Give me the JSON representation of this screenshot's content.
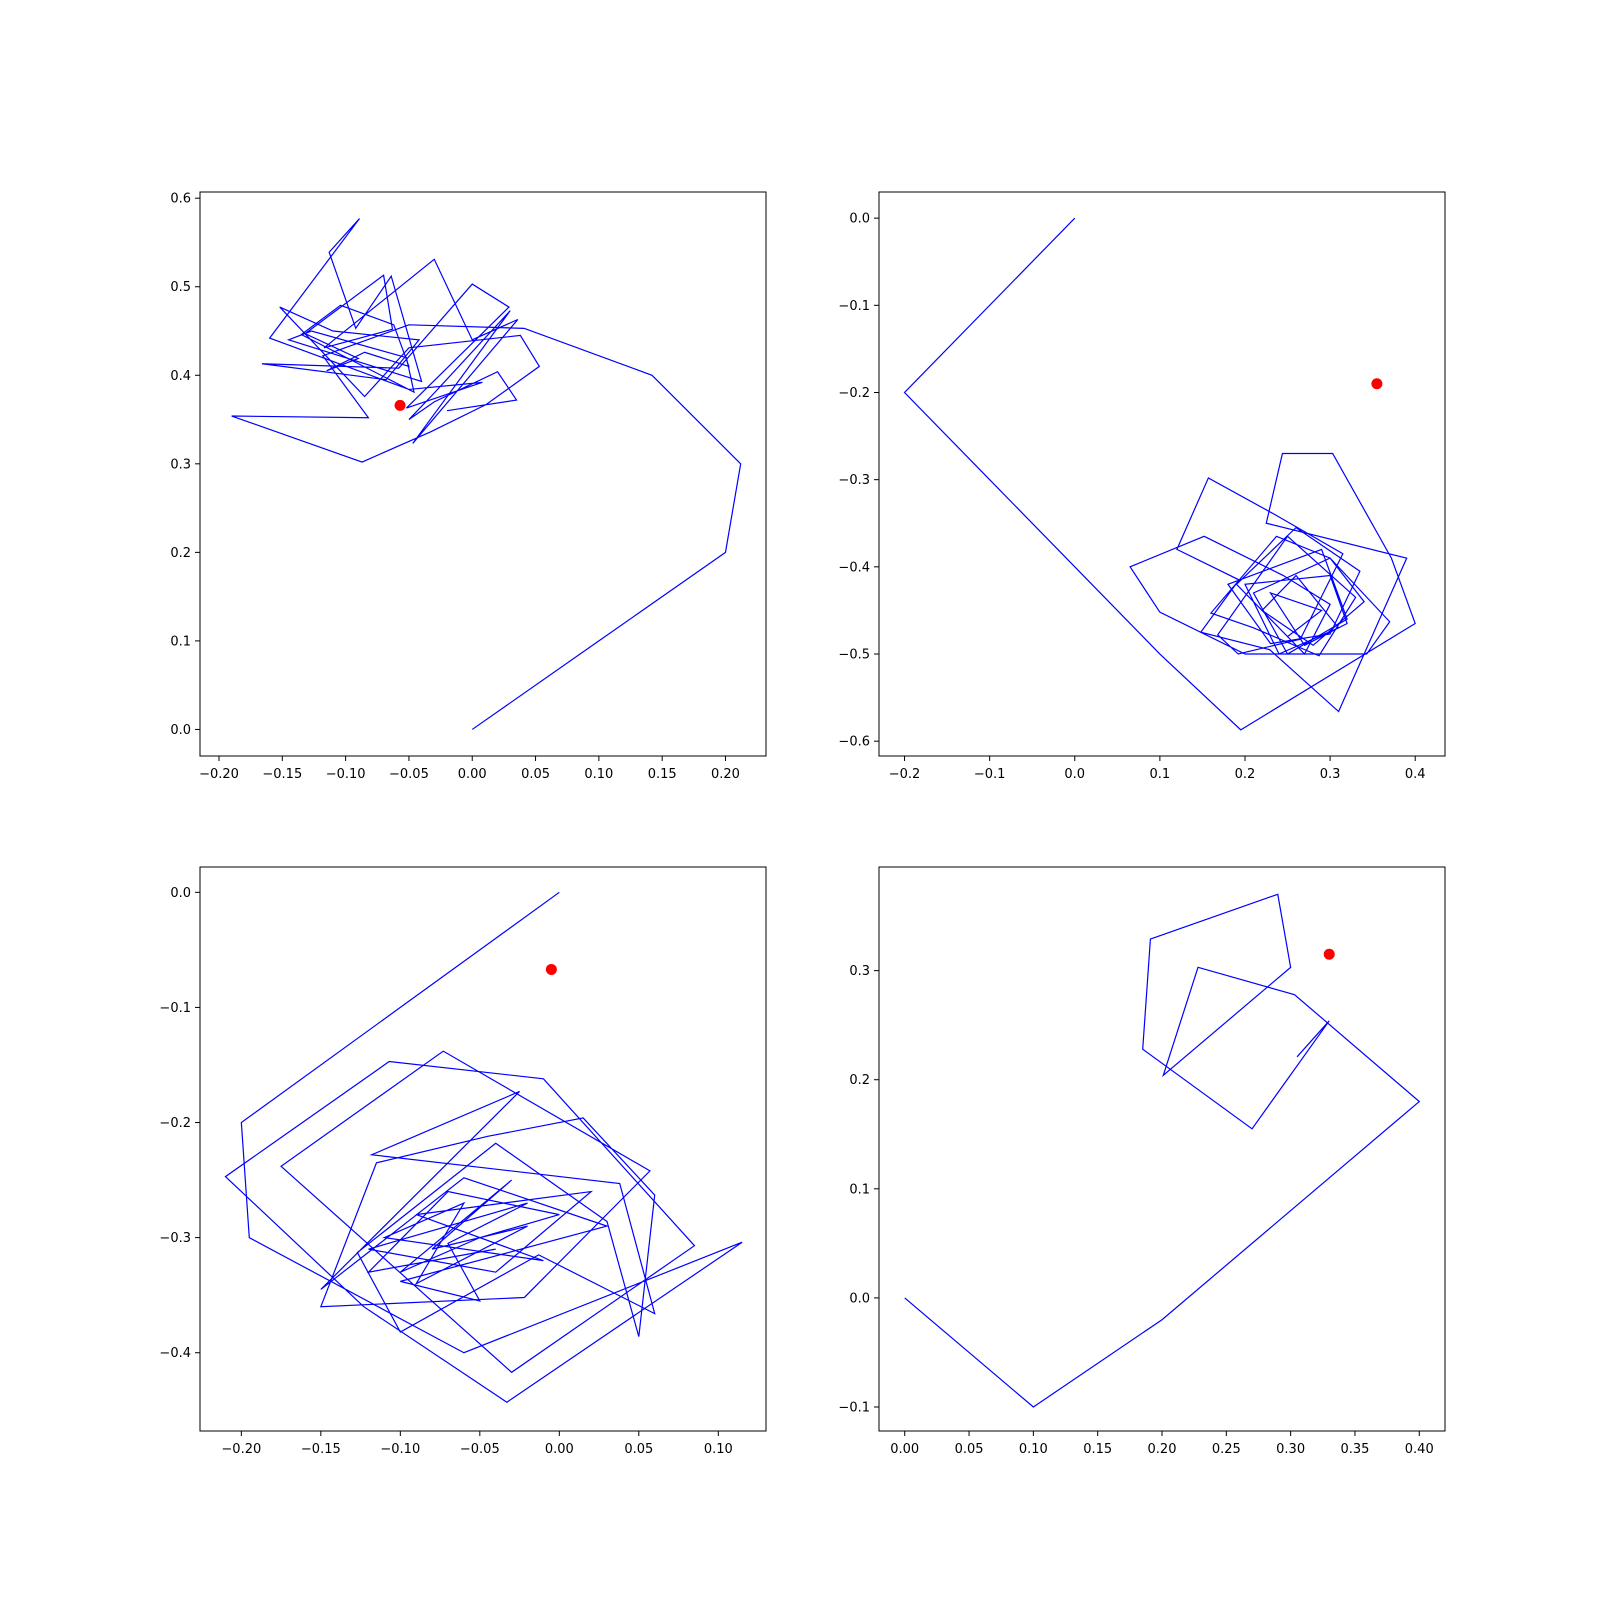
{
  "chart_data": [
    {
      "type": "line",
      "title": "",
      "xlabel": "",
      "ylabel": "",
      "xlim": [
        -0.215,
        0.232
      ],
      "ylim": [
        -0.03,
        0.607
      ],
      "xticks": [
        -0.2,
        -0.15,
        -0.1,
        -0.05,
        0.0,
        0.05,
        0.1,
        0.15,
        0.2
      ],
      "xtick_labels": [
        "−0.20",
        "−0.15",
        "−0.10",
        "−0.05",
        "0.00",
        "0.05",
        "0.10",
        "0.15",
        "0.20"
      ],
      "yticks": [
        0.0,
        0.1,
        0.2,
        0.3,
        0.4,
        0.5,
        0.6
      ],
      "ytick_labels": [
        "0.0",
        "0.1",
        "0.2",
        "0.3",
        "0.4",
        "0.5",
        "0.6"
      ],
      "grid": false,
      "series": [
        {
          "line_color": "#0000ff",
          "x": [
            0.0,
            0.1,
            0.2,
            0.212,
            0.142,
            0.041,
            -0.05,
            -0.118,
            -0.082,
            -0.19,
            -0.087,
            -0.033,
            0.011,
            0.053,
            0.038,
            -0.05,
            -0.085,
            -0.152,
            -0.11,
            -0.042,
            -0.068,
            -0.166,
            -0.058,
            0.0,
            0.029,
            -0.052,
            0.008,
            -0.05,
            -0.16,
            -0.089,
            -0.113,
            -0.092,
            -0.064,
            -0.04,
            -0.145,
            -0.127,
            -0.052,
            -0.046,
            -0.135,
            -0.104,
            -0.062,
            -0.05,
            -0.085,
            -0.115,
            -0.09,
            -0.132,
            -0.07,
            -0.063,
            -0.117,
            -0.03,
            0.0,
            0.036,
            -0.047,
            0.03,
            -0.03,
            -0.05,
            -0.03,
            0.02,
            0.035,
            -0.02
          ],
          "y": [
            0.0,
            0.1,
            0.2,
            0.3,
            0.4,
            0.453,
            0.457,
            0.422,
            0.352,
            0.354,
            0.302,
            0.336,
            0.367,
            0.41,
            0.445,
            0.431,
            0.376,
            0.477,
            0.45,
            0.44,
            0.395,
            0.413,
            0.408,
            0.503,
            0.477,
            0.363,
            0.392,
            0.384,
            0.442,
            0.577,
            0.539,
            0.453,
            0.512,
            0.393,
            0.44,
            0.45,
            0.42,
            0.381,
            0.446,
            0.479,
            0.457,
            0.41,
            0.426,
            0.405,
            0.419,
            0.447,
            0.513,
            0.452,
            0.431,
            0.531,
            0.44,
            0.463,
            0.323,
            0.473,
            0.38,
            0.35,
            0.37,
            0.404,
            0.372,
            0.36
          ]
        }
      ],
      "marker": {
        "x": -0.057,
        "y": 0.366,
        "color": "#ff0000"
      }
    },
    {
      "type": "line",
      "title": "",
      "xlabel": "",
      "ylabel": "",
      "xlim": [
        -0.23,
        0.435
      ],
      "ylim": [
        -0.617,
        0.03
      ],
      "xticks": [
        -0.2,
        -0.1,
        0.0,
        0.1,
        0.2,
        0.3,
        0.4
      ],
      "xtick_labels": [
        "−0.2",
        "−0.1",
        "0.0",
        "0.1",
        "0.2",
        "0.3",
        "0.4"
      ],
      "yticks": [
        0.0,
        -0.1,
        -0.2,
        -0.3,
        -0.4,
        -0.5,
        -0.6
      ],
      "ytick_labels": [
        "0.0",
        "−0.1",
        "−0.2",
        "−0.3",
        "−0.4",
        "−0.5",
        "−0.6"
      ],
      "grid": false,
      "series": [
        {
          "line_color": "#0000ff",
          "x": [
            0.0,
            -0.2,
            -0.1,
            0.0,
            0.1,
            0.195,
            0.4,
            0.372,
            0.303,
            0.244,
            0.225,
            0.39,
            0.31,
            0.229,
            0.148,
            0.193,
            0.12,
            0.157,
            0.235,
            0.315,
            0.265,
            0.192,
            0.168,
            0.25,
            0.33,
            0.287,
            0.21,
            0.16,
            0.237,
            0.3,
            0.37,
            0.343,
            0.2,
            0.1,
            0.065,
            0.152,
            0.245,
            0.3,
            0.27,
            0.19,
            0.26,
            0.335,
            0.3,
            0.23,
            0.18,
            0.29,
            0.32,
            0.25,
            0.21,
            0.3,
            0.34,
            0.28,
            0.22,
            0.26,
            0.31,
            0.24,
            0.2,
            0.3,
            0.32,
            0.27,
            0.23,
            0.29,
            0.25
          ],
          "y": [
            0.0,
            -0.2,
            -0.3,
            -0.4,
            -0.5,
            -0.587,
            -0.465,
            -0.39,
            -0.27,
            -0.27,
            -0.35,
            -0.39,
            -0.566,
            -0.495,
            -0.475,
            -0.415,
            -0.38,
            -0.298,
            -0.34,
            -0.385,
            -0.483,
            -0.5,
            -0.478,
            -0.365,
            -0.435,
            -0.502,
            -0.47,
            -0.453,
            -0.365,
            -0.39,
            -0.463,
            -0.5,
            -0.5,
            -0.452,
            -0.4,
            -0.365,
            -0.41,
            -0.443,
            -0.5,
            -0.42,
            -0.355,
            -0.405,
            -0.477,
            -0.488,
            -0.42,
            -0.38,
            -0.46,
            -0.5,
            -0.43,
            -0.39,
            -0.44,
            -0.49,
            -0.45,
            -0.41,
            -0.47,
            -0.5,
            -0.42,
            -0.41,
            -0.465,
            -0.49,
            -0.43,
            -0.45,
            -0.48
          ]
        }
      ],
      "marker": {
        "x": 0.355,
        "y": -0.19,
        "color": "#ff0000"
      }
    },
    {
      "type": "line",
      "title": "",
      "xlabel": "",
      "ylabel": "",
      "xlim": [
        -0.226,
        0.13
      ],
      "ylim": [
        -0.468,
        0.022
      ],
      "xticks": [
        -0.2,
        -0.15,
        -0.1,
        -0.05,
        0.0,
        0.05,
        0.1
      ],
      "xtick_labels": [
        "−0.20",
        "−0.15",
        "−0.10",
        "−0.05",
        "0.00",
        "0.05",
        "0.10"
      ],
      "yticks": [
        0.0,
        -0.1,
        -0.2,
        -0.3,
        -0.4
      ],
      "ytick_labels": [
        "0.0",
        "−0.1",
        "−0.2",
        "−0.3",
        "−0.4"
      ],
      "grid": false,
      "series": [
        {
          "line_color": "#0000ff",
          "x": [
            0.0,
            -0.1,
            -0.2,
            -0.195,
            -0.06,
            0.115,
            -0.033,
            -0.123,
            -0.21,
            -0.107,
            -0.01,
            0.085,
            -0.03,
            -0.175,
            -0.073,
            0.057,
            -0.022,
            -0.15,
            -0.115,
            -0.045,
            0.015,
            0.06,
            0.05,
            0.03,
            -0.04,
            -0.127,
            -0.1,
            -0.013,
            0.06,
            0.038,
            -0.118,
            -0.025,
            -0.15,
            -0.06,
            0.03,
            -0.1,
            -0.05,
            -0.07,
            -0.02,
            -0.12,
            -0.04,
            0.02,
            -0.09,
            -0.01,
            -0.11,
            -0.06,
            -0.09,
            -0.02,
            -0.08,
            -0.03,
            -0.1,
            -0.05,
            0.0,
            -0.07,
            -0.12,
            -0.04
          ],
          "y": [
            0.0,
            -0.1,
            -0.2,
            -0.3,
            -0.4,
            -0.304,
            -0.443,
            -0.36,
            -0.247,
            -0.147,
            -0.162,
            -0.307,
            -0.417,
            -0.238,
            -0.138,
            -0.242,
            -0.352,
            -0.36,
            -0.235,
            -0.212,
            -0.196,
            -0.263,
            -0.386,
            -0.286,
            -0.218,
            -0.313,
            -0.382,
            -0.315,
            -0.366,
            -0.253,
            -0.228,
            -0.173,
            -0.345,
            -0.248,
            -0.29,
            -0.338,
            -0.355,
            -0.305,
            -0.27,
            -0.31,
            -0.33,
            -0.26,
            -0.28,
            -0.32,
            -0.3,
            -0.27,
            -0.34,
            -0.29,
            -0.31,
            -0.25,
            -0.33,
            -0.3,
            -0.28,
            -0.26,
            -0.33,
            -0.31
          ]
        }
      ],
      "marker": {
        "x": -0.005,
        "y": -0.067,
        "color": "#ff0000"
      }
    },
    {
      "type": "line",
      "title": "",
      "xlabel": "",
      "ylabel": "",
      "xlim": [
        -0.02,
        0.42
      ],
      "ylim": [
        -0.122,
        0.395
      ],
      "xticks": [
        0.0,
        0.05,
        0.1,
        0.15,
        0.2,
        0.25,
        0.3,
        0.35,
        0.4
      ],
      "xtick_labels": [
        "0.00",
        "0.05",
        "0.10",
        "0.15",
        "0.20",
        "0.25",
        "0.30",
        "0.35",
        "0.40"
      ],
      "yticks": [
        0.3,
        0.2,
        0.1,
        0.0,
        -0.1
      ],
      "ytick_labels": [
        "0.3",
        "0.2",
        "0.1",
        "0.0",
        "−0.1"
      ],
      "grid": false,
      "series": [
        {
          "line_color": "#0000ff",
          "x": [
            0.0,
            0.1,
            0.2,
            0.4,
            0.303,
            0.228,
            0.201,
            0.3,
            0.29,
            0.191,
            0.185,
            0.27,
            0.33,
            0.305
          ],
          "y": [
            0.0,
            -0.1,
            -0.02,
            0.18,
            0.278,
            0.303,
            0.204,
            0.303,
            0.37,
            0.329,
            0.228,
            0.155,
            0.254,
            0.221
          ]
        }
      ],
      "marker": {
        "x": 0.33,
        "y": 0.315,
        "color": "#ff0000"
      }
    }
  ]
}
